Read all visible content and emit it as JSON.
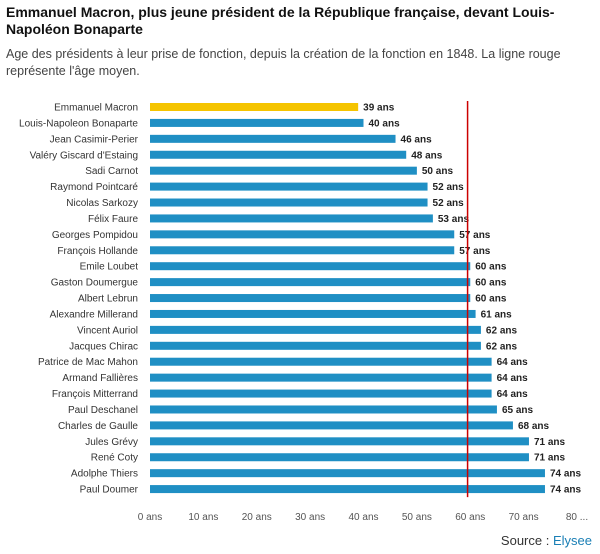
{
  "title": "Emmanuel Macron, plus jeune président de la République française, devant Louis-Napoléon Bonaparte",
  "subtitle": "Age des présidents à leur prise de fonction, depuis la création de la fonction en 1848. La ligne rouge représente l'âge moyen.",
  "source": {
    "label": "Source :",
    "brand": "Elysee"
  },
  "colors": {
    "bar": "#1f8fc4",
    "highlight": "#f5c400",
    "average_line": "#cc0000"
  },
  "chart_data": {
    "type": "bar",
    "orientation": "horizontal",
    "categories": [
      "Emmanuel Macron",
      "Louis-Napoleon Bonaparte",
      "Jean Casimir-Perier",
      "Valéry Giscard d'Estaing",
      "Sadi Carnot",
      "Raymond Pointcaré",
      "Nicolas Sarkozy",
      "Félix Faure",
      "Georges Pompidou",
      "François Hollande",
      "Emile Loubet",
      "Gaston Doumergue",
      "Albert Lebrun",
      "Alexandre Millerand",
      "Vincent Auriol",
      "Jacques Chirac",
      "Patrice de Mac Mahon",
      "Armand Fallières",
      "François Mitterrand",
      "Paul Deschanel",
      "Charles de Gaulle",
      "Jules Grévy",
      "René Coty",
      "Adolphe Thiers",
      "Paul Doumer"
    ],
    "values": [
      39,
      40,
      46,
      48,
      50,
      52,
      52,
      53,
      57,
      57,
      60,
      60,
      60,
      61,
      62,
      62,
      64,
      64,
      64,
      65,
      68,
      71,
      71,
      74,
      74
    ],
    "value_labels": [
      "39 ans",
      "40 ans",
      "46 ans",
      "48 ans",
      "50 ans",
      "52 ans",
      "52 ans",
      "53 ans",
      "57 ans",
      "57 ans",
      "60 ans",
      "60 ans",
      "60 ans",
      "61 ans",
      "62 ans",
      "62 ans",
      "64 ans",
      "64 ans",
      "64 ans",
      "65 ans",
      "68 ans",
      "71 ans",
      "71 ans",
      "74 ans",
      "74 ans"
    ],
    "highlight_index": 0,
    "average": 59.5,
    "xlim": [
      0,
      80
    ],
    "xticks": [
      0,
      10,
      20,
      30,
      40,
      50,
      60,
      70,
      80
    ],
    "xtick_labels": [
      "0 ans",
      "10 ans",
      "20 ans",
      "30 ans",
      "40 ans",
      "50 ans",
      "60 ans",
      "70 ans",
      "80 ..."
    ],
    "xlabel": "",
    "ylabel": "",
    "grid": false
  }
}
